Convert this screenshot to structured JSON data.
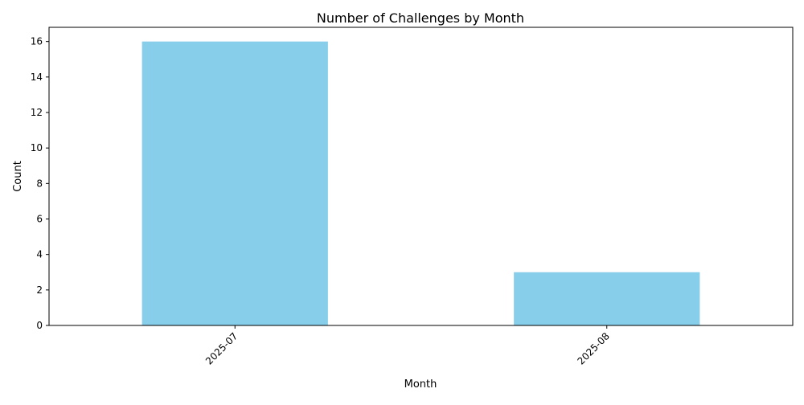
{
  "chart_data": {
    "type": "bar",
    "title": "Number of Challenges by Month",
    "xlabel": "Month",
    "ylabel": "Count",
    "categories": [
      "2025-07",
      "2025-08"
    ],
    "values": [
      16,
      3
    ],
    "ylim": [
      0,
      16.8
    ],
    "yticks": [
      0,
      2,
      4,
      6,
      8,
      10,
      12,
      14,
      16
    ],
    "grid": false,
    "legend": "none",
    "bar_color": "#87CEEB",
    "xtick_rotation": "45"
  }
}
